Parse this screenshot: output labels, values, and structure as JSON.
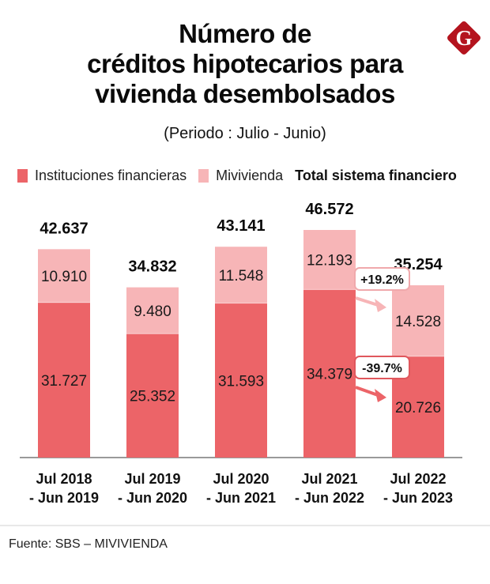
{
  "header": {
    "title_lines": [
      "Número de",
      "créditos hipotecarios para",
      "vivienda desembolsados"
    ],
    "subtitle": "(Periodo : Julio - Junio)",
    "logo_letter": "G"
  },
  "legend": {
    "items": [
      {
        "label": "Instituciones financieras",
        "color": "#ec6468"
      },
      {
        "label": "Mivivienda",
        "color": "#f7b5b7"
      }
    ],
    "total_label": "Total sistema financiero"
  },
  "colors": {
    "instituciones": "#ec6468",
    "mivivienda": "#f7b5b7",
    "axis": "#9a9a9a",
    "logo": "#b4141e",
    "badge_up_border": "#f0a9ac",
    "badge_down_border": "#e0575d"
  },
  "chart_data": {
    "type": "bar",
    "stacked": true,
    "title": "Número de créditos hipotecarios para vivienda desembolsados",
    "subtitle": "(Periodo : Julio - Junio)",
    "categories": [
      [
        "Jul 2018",
        "- Jun 2019"
      ],
      [
        "Jul 2019",
        "- Jun 2020"
      ],
      [
        "Jul 2020",
        "- Jun 2021"
      ],
      [
        "Jul 2021",
        "- Jun 2022"
      ],
      [
        "Jul 2022",
        "- Jun 2023"
      ]
    ],
    "series": [
      {
        "name": "Instituciones financieras",
        "values": [
          31727,
          25352,
          31593,
          34379,
          20726
        ],
        "labels": [
          "31.727",
          "25.352",
          "31.593",
          "34.379",
          "20.726"
        ]
      },
      {
        "name": "Mivivienda",
        "values": [
          10910,
          9480,
          11548,
          12193,
          14528
        ],
        "labels": [
          "10.910",
          "9.480",
          "11.548",
          "12.193",
          "14.528"
        ]
      }
    ],
    "totals": {
      "name": "Total sistema financiero",
      "values": [
        42637,
        34832,
        43141,
        46572,
        35254
      ],
      "labels": [
        "42.637",
        "34.832",
        "43.141",
        "46.572",
        "35.254"
      ]
    },
    "annotations": [
      {
        "text": "+19.2%",
        "series": "Mivivienda",
        "from": "Jul 2021 - Jun 2022",
        "to": "Jul 2022 - Jun 2023"
      },
      {
        "text": "-39.7%",
        "series": "Instituciones financieras",
        "from": "Jul 2021 - Jun 2022",
        "to": "Jul 2022 - Jun 2023"
      }
    ],
    "xlabel": "",
    "ylabel": "",
    "ylim": [
      0,
      46572
    ],
    "grid": false,
    "legend_position": "top"
  },
  "footer": {
    "source": "Fuente: SBS – MIVIVIENDA"
  }
}
